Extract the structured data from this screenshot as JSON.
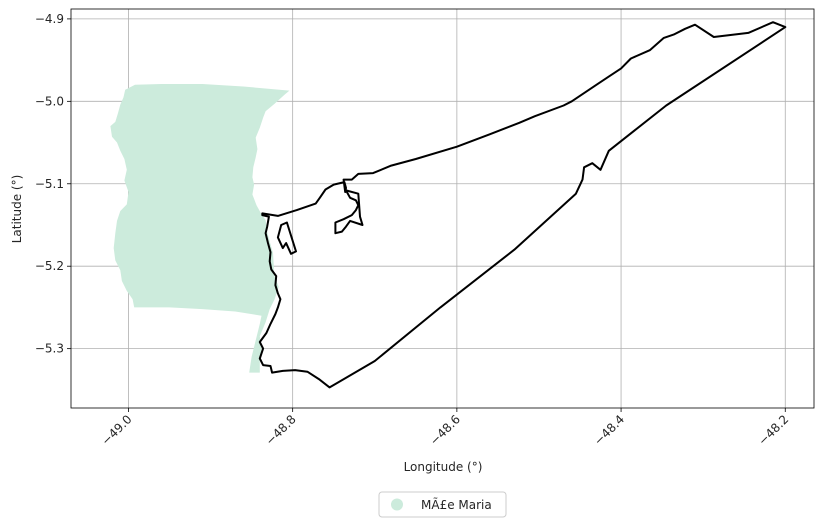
{
  "chart_data": {
    "type": "map",
    "title": "",
    "xlabel": "Longitude (°)",
    "ylabel": "Latitude (°)",
    "xlim": [
      -49.07,
      -48.165
    ],
    "ylim": [
      -5.372,
      -4.888
    ],
    "grid": true,
    "x_ticks": [
      {
        "value": -49.0,
        "label": "−49.0"
      },
      {
        "value": -48.8,
        "label": "−48.8"
      },
      {
        "value": -48.6,
        "label": "−48.6"
      },
      {
        "value": -48.4,
        "label": "−48.4"
      },
      {
        "value": -48.2,
        "label": "−48.2"
      }
    ],
    "y_ticks": [
      {
        "value": -4.9,
        "label": "−4.9"
      },
      {
        "value": -5.0,
        "label": "−5.0"
      },
      {
        "value": -5.1,
        "label": "−5.1"
      },
      {
        "value": -5.2,
        "label": "−5.2"
      },
      {
        "value": -5.3,
        "label": "−5.3"
      }
    ],
    "legend": {
      "placement": "bottom-center",
      "entries": [
        {
          "label": "MÃ£e Maria",
          "color": "#ccebdc",
          "marker": "circle"
        }
      ]
    },
    "layers": [
      {
        "name": "MÃ£e Maria",
        "kind": "filled-polygon",
        "fill": "#ccebdc",
        "rings": [
          [
            [
              -48.992,
              -4.98
            ],
            [
              -48.96,
              -4.979
            ],
            [
              -48.91,
              -4.979
            ],
            [
              -48.86,
              -4.982
            ],
            [
              -48.804,
              -4.987
            ],
            [
              -48.81,
              -4.992
            ],
            [
              -48.822,
              -5.003
            ],
            [
              -48.833,
              -5.012
            ],
            [
              -48.836,
              -5.02
            ],
            [
              -48.84,
              -5.032
            ],
            [
              -48.845,
              -5.044
            ],
            [
              -48.843,
              -5.058
            ],
            [
              -48.845,
              -5.068
            ],
            [
              -48.848,
              -5.08
            ],
            [
              -48.849,
              -5.092
            ],
            [
              -48.847,
              -5.101
            ],
            [
              -48.849,
              -5.113
            ],
            [
              -48.844,
              -5.126
            ],
            [
              -48.838,
              -5.137
            ],
            [
              -48.833,
              -5.144
            ],
            [
              -48.831,
              -5.158
            ],
            [
              -48.828,
              -5.17
            ],
            [
              -48.824,
              -5.184
            ],
            [
              -48.823,
              -5.2
            ],
            [
              -48.823,
              -5.21
            ],
            [
              -48.817,
              -5.225
            ],
            [
              -48.822,
              -5.24
            ],
            [
              -48.828,
              -5.252
            ],
            [
              -48.833,
              -5.268
            ],
            [
              -48.84,
              -5.285
            ],
            [
              -48.838,
              -5.3
            ],
            [
              -48.84,
              -5.315
            ],
            [
              -48.84,
              -5.329
            ],
            [
              -48.853,
              -5.329
            ],
            [
              -48.85,
              -5.31
            ],
            [
              -48.845,
              -5.29
            ],
            [
              -48.84,
              -5.27
            ],
            [
              -48.838,
              -5.26
            ],
            [
              -48.87,
              -5.255
            ],
            [
              -48.91,
              -5.252
            ],
            [
              -48.95,
              -5.25
            ],
            [
              -48.993,
              -5.25
            ],
            [
              -48.995,
              -5.24
            ],
            [
              -49.002,
              -5.23
            ],
            [
              -49.008,
              -5.218
            ],
            [
              -49.01,
              -5.205
            ],
            [
              -49.016,
              -5.193
            ],
            [
              -49.018,
              -5.178
            ],
            [
              -49.016,
              -5.16
            ],
            [
              -49.014,
              -5.145
            ],
            [
              -49.01,
              -5.133
            ],
            [
              -49.002,
              -5.125
            ],
            [
              -49.0,
              -5.11
            ],
            [
              -49.005,
              -5.096
            ],
            [
              -49.002,
              -5.083
            ],
            [
              -49.005,
              -5.07
            ],
            [
              -49.01,
              -5.06
            ],
            [
              -49.014,
              -5.05
            ],
            [
              -49.02,
              -5.043
            ],
            [
              -49.022,
              -5.03
            ],
            [
              -49.016,
              -5.025
            ],
            [
              -49.013,
              -5.015
            ],
            [
              -49.01,
              -5.004
            ],
            [
              -49.006,
              -4.995
            ],
            [
              -49.004,
              -4.986
            ]
          ]
        ]
      },
      {
        "name": "territory-outline",
        "kind": "outline",
        "stroke": "#000000",
        "rings": [
          [
            [
              -48.837,
              -5.136
            ],
            [
              -48.818,
              -5.139
            ],
            [
              -48.795,
              -5.132
            ],
            [
              -48.772,
              -5.124
            ],
            [
              -48.767,
              -5.117
            ],
            [
              -48.76,
              -5.107
            ],
            [
              -48.75,
              -5.101
            ],
            [
              -48.737,
              -5.098
            ],
            [
              -48.735,
              -5.105
            ],
            [
              -48.736,
              -5.11
            ],
            [
              -48.738,
              -5.095
            ],
            [
              -48.728,
              -5.095
            ],
            [
              -48.72,
              -5.088
            ],
            [
              -48.702,
              -5.087
            ],
            [
              -48.68,
              -5.078
            ],
            [
              -48.65,
              -5.07
            ],
            [
              -48.6,
              -5.055
            ],
            [
              -48.56,
              -5.04
            ],
            [
              -48.524,
              -5.026
            ],
            [
              -48.505,
              -5.018
            ],
            [
              -48.47,
              -5.005
            ],
            [
              -48.46,
              -5.0
            ],
            [
              -48.445,
              -4.99
            ],
            [
              -48.43,
              -4.98
            ],
            [
              -48.415,
              -4.97
            ],
            [
              -48.4,
              -4.96
            ],
            [
              -48.388,
              -4.948
            ],
            [
              -48.365,
              -4.938
            ],
            [
              -48.348,
              -4.923
            ],
            [
              -48.336,
              -4.919
            ],
            [
              -48.322,
              -4.912
            ],
            [
              -48.31,
              -4.907
            ],
            [
              -48.287,
              -4.922
            ],
            [
              -48.245,
              -4.917
            ],
            [
              -48.215,
              -4.904
            ],
            [
              -48.2,
              -4.91
            ],
            [
              -48.345,
              -5.005
            ],
            [
              -48.415,
              -5.06
            ],
            [
              -48.425,
              -5.083
            ],
            [
              -48.435,
              -5.075
            ],
            [
              -48.445,
              -5.08
            ],
            [
              -48.447,
              -5.095
            ],
            [
              -48.455,
              -5.112
            ],
            [
              -48.53,
              -5.18
            ],
            [
              -48.62,
              -5.25
            ],
            [
              -48.7,
              -5.315
            ],
            [
              -48.755,
              -5.347
            ],
            [
              -48.768,
              -5.337
            ],
            [
              -48.782,
              -5.328
            ],
            [
              -48.797,
              -5.326
            ],
            [
              -48.812,
              -5.327
            ],
            [
              -48.825,
              -5.329
            ],
            [
              -48.827,
              -5.321
            ],
            [
              -48.836,
              -5.32
            ],
            [
              -48.84,
              -5.312
            ],
            [
              -48.836,
              -5.3
            ],
            [
              -48.84,
              -5.292
            ],
            [
              -48.832,
              -5.281
            ],
            [
              -48.827,
              -5.27
            ],
            [
              -48.821,
              -5.258
            ],
            [
              -48.818,
              -5.25
            ],
            [
              -48.815,
              -5.24
            ],
            [
              -48.818,
              -5.233
            ],
            [
              -48.821,
              -5.223
            ],
            [
              -48.82,
              -5.212
            ],
            [
              -48.826,
              -5.204
            ],
            [
              -48.828,
              -5.194
            ],
            [
              -48.827,
              -5.183
            ],
            [
              -48.83,
              -5.172
            ],
            [
              -48.833,
              -5.16
            ],
            [
              -48.831,
              -5.152
            ],
            [
              -48.829,
              -5.14
            ],
            [
              -48.837,
              -5.138
            ]
          ],
          [
            [
              -48.807,
              -5.147
            ],
            [
              -48.796,
              -5.182
            ],
            [
              -48.802,
              -5.185
            ],
            [
              -48.808,
              -5.172
            ],
            [
              -48.812,
              -5.178
            ],
            [
              -48.818,
              -5.165
            ],
            [
              -48.814,
              -5.15
            ]
          ],
          [
            [
              -48.735,
              -5.108
            ],
            [
              -48.72,
              -5.112
            ],
            [
              -48.718,
              -5.14
            ],
            [
              -48.715,
              -5.15
            ],
            [
              -48.73,
              -5.145
            ],
            [
              -48.735,
              -5.152
            ],
            [
              -48.74,
              -5.158
            ],
            [
              -48.748,
              -5.16
            ],
            [
              -48.748,
              -5.147
            ],
            [
              -48.738,
              -5.143
            ],
            [
              -48.728,
              -5.138
            ],
            [
              -48.723,
              -5.132
            ],
            [
              -48.72,
              -5.126
            ],
            [
              -48.723,
              -5.12
            ],
            [
              -48.73,
              -5.117
            ]
          ]
        ]
      }
    ]
  }
}
